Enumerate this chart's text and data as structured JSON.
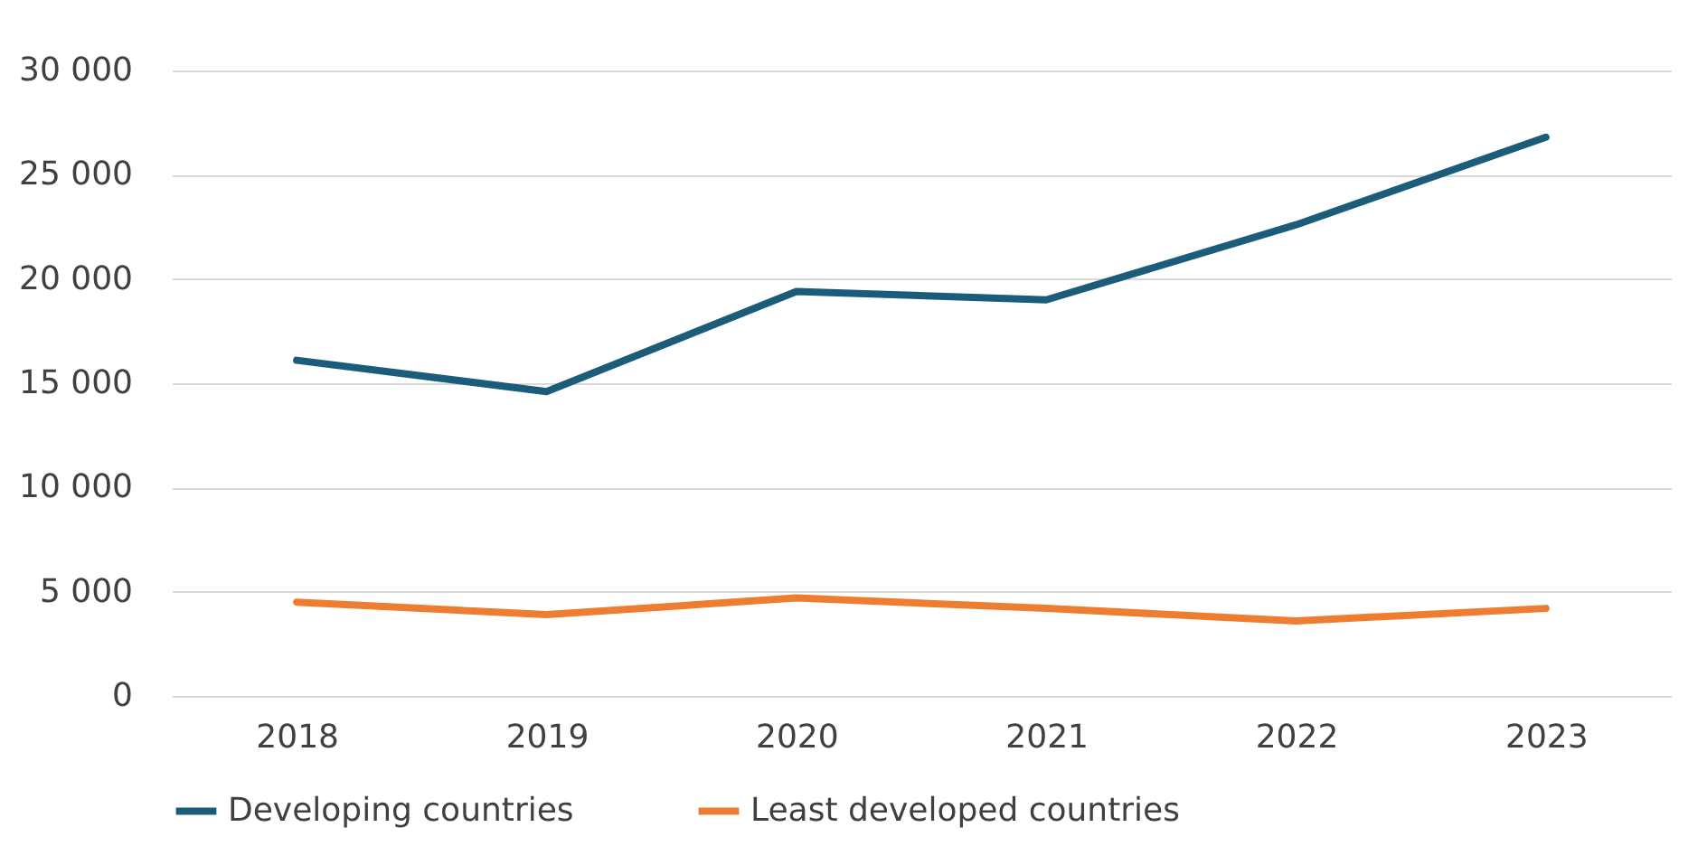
{
  "chart_data": {
    "type": "line",
    "categories": [
      "2018",
      "2019",
      "2020",
      "2021",
      "2022",
      "2023"
    ],
    "series": [
      {
        "name": "Developing countries",
        "color": "#1b5c7b",
        "values": [
          16100,
          14600,
          19400,
          19000,
          22600,
          26800
        ]
      },
      {
        "name": "Least developed countries",
        "color": "#ed7d31",
        "values": [
          4500,
          3900,
          4700,
          4200,
          3600,
          4200
        ]
      }
    ],
    "ylim": [
      0,
      30000
    ],
    "yticks": [
      {
        "value": 0,
        "label": "0"
      },
      {
        "value": 5000,
        "label": "5 000"
      },
      {
        "value": 10000,
        "label": "10 000"
      },
      {
        "value": 15000,
        "label": "15 000"
      },
      {
        "value": 20000,
        "label": "20 000"
      },
      {
        "value": 25000,
        "label": "25 000"
      },
      {
        "value": 30000,
        "label": "30 000"
      }
    ],
    "grid": "y",
    "legend": "bottom",
    "marker": "none",
    "line_style": "solid"
  }
}
